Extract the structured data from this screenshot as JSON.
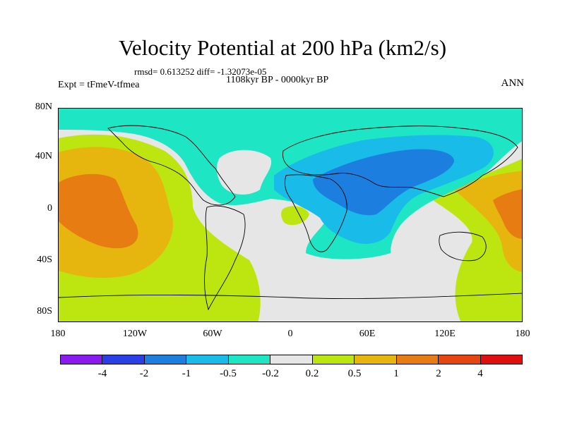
{
  "title": "Velocity Potential at 200 hPa (km2/s)",
  "stats": "rmsd= 0.613252 diff= -1.32073e-05",
  "period": "1108kyr BP - 0000kyr BP",
  "experiment": "Expt = tFmeV-tfmea",
  "season": "ANN",
  "axes": {
    "y_ticks": [
      "80N",
      "40N",
      "0",
      "40S",
      "80S"
    ],
    "x_ticks": [
      "180",
      "120W",
      "60W",
      "0",
      "60E",
      "120E",
      "180"
    ]
  },
  "colorbar": {
    "colors": [
      "#8a1aee",
      "#2a3fe6",
      "#1c7fe0",
      "#19bce8",
      "#1ee6c4",
      "#e6e6e6",
      "#bde610",
      "#e6b60f",
      "#e67c12",
      "#e5460f",
      "#e00f0f"
    ],
    "labels": [
      "-4",
      "-2",
      "-1",
      "-0.5",
      "-0.2",
      "0.2",
      "0.5",
      "1",
      "2",
      "4"
    ]
  },
  "palette": {
    "pos1": "#bde610",
    "pos2": "#e6b60f",
    "pos3": "#e67c12",
    "neutral": "#e6e6e6",
    "neg1": "#1ee6c4",
    "neg2": "#19bce8",
    "neg3": "#1c7fe0"
  }
}
